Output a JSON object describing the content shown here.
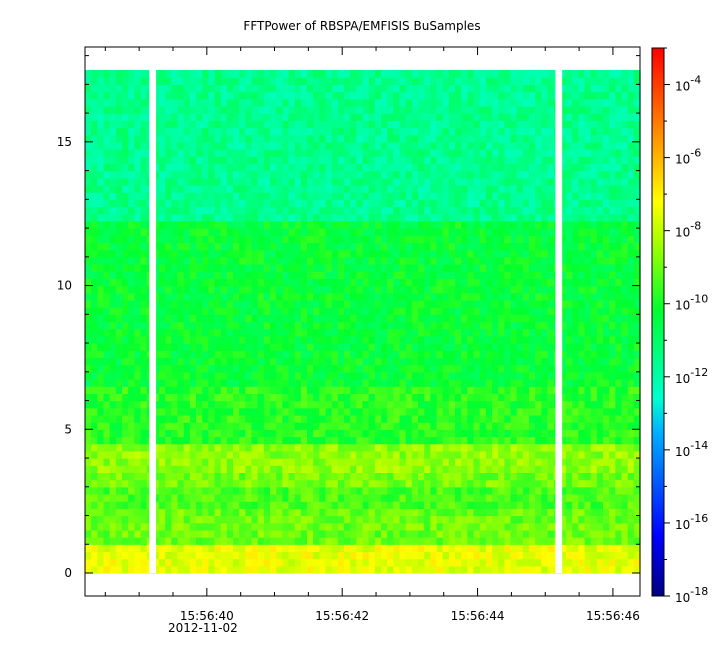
{
  "chart_data": {
    "type": "heatmap",
    "title": "FFTPower of RBSPA/EMFISIS  BuSamples",
    "xlabel": "",
    "ylabel": "",
    "x_ticks": [
      "15:56:40",
      "15:56:42",
      "15:56:44",
      "15:56:46"
    ],
    "x_tick_seconds": [
      40,
      42,
      44,
      46
    ],
    "x_date_label": "2012-11-02",
    "xlim_seconds": [
      38.2,
      46.4
    ],
    "y_ticks": [
      0,
      5,
      10,
      15
    ],
    "ylim": [
      -0.8,
      18.3
    ],
    "data_frequency_range": [
      0,
      17.5
    ],
    "data_gaps_seconds": [
      [
        39.15,
        39.25
      ],
      [
        45.15,
        45.25
      ]
    ],
    "colorbar": {
      "scale": "log",
      "range": [
        1e-18,
        0.001
      ],
      "tick_exponents": [
        "-4",
        "-6",
        "-8",
        "-10",
        "-12",
        "-14",
        "-16",
        "-18"
      ],
      "tick_values": [
        0.0001,
        1e-06,
        1e-08,
        1e-10,
        1e-12,
        1e-14,
        1e-16,
        1e-18
      ]
    },
    "bands": [
      {
        "freq": [
          0.0,
          0.9
        ],
        "log_power": -7.5
      },
      {
        "freq": [
          0.9,
          2.2
        ],
        "log_power": -9.0
      },
      {
        "freq": [
          2.2,
          3.0
        ],
        "log_power": -9.4
      },
      {
        "freq": [
          3.0,
          3.5
        ],
        "log_power": -8.9
      },
      {
        "freq": [
          3.5,
          4.5
        ],
        "log_power": -8.6
      },
      {
        "freq": [
          4.5,
          6.5
        ],
        "log_power": -9.8
      },
      {
        "freq": [
          6.5,
          12.2
        ],
        "log_power": -10.3
      },
      {
        "freq": [
          12.2,
          17.5
        ],
        "log_power": -11.6
      }
    ]
  },
  "colors": {
    "colormap": [
      "#000080",
      "#0000ff",
      "#00ffff",
      "#00ff00",
      "#ffff00",
      "#ff8000",
      "#ff0000"
    ]
  }
}
